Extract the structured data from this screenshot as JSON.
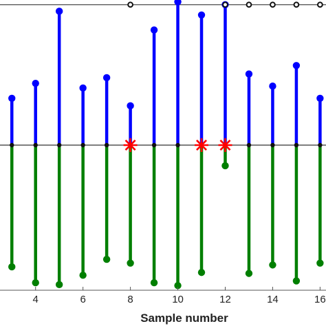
{
  "chart_data": {
    "type": "stem",
    "xlabel": "Sample number",
    "xlim": [
      2.5,
      16.25
    ],
    "ylim": [
      -1.55,
      1.55
    ],
    "x_ticks": [
      4,
      6,
      8,
      10,
      12,
      14,
      16
    ],
    "x_tick_labels": [
      "4",
      "6",
      "8",
      "10",
      "12",
      "14",
      "16"
    ],
    "grid": false,
    "baselines": [
      0,
      1.5
    ],
    "series": [
      {
        "color": "#0000ff",
        "x": [
          3,
          4,
          5,
          6,
          7,
          8,
          9,
          10,
          11,
          12,
          13,
          14,
          15,
          16
        ],
        "values": [
          0.5,
          0.66,
          1.43,
          0.61,
          0.72,
          0.42,
          1.23,
          1.53,
          1.39,
          1.5,
          0.76,
          0.63,
          0.85,
          0.5
        ]
      },
      {
        "color": "#007f00",
        "x": [
          3,
          4,
          5,
          6,
          7,
          8,
          9,
          10,
          11,
          12,
          13,
          14,
          15,
          16
        ],
        "values": [
          -1.3,
          -1.47,
          -1.49,
          -1.39,
          -1.22,
          -1.26,
          -1.47,
          -1.5,
          -1.36,
          -0.22,
          -1.37,
          -1.28,
          -1.45,
          -1.26
        ]
      }
    ],
    "marked_points": {
      "color": "#ff0000",
      "symbol": "asterisk",
      "x": [
        8,
        11,
        12
      ],
      "y": [
        0,
        0,
        0
      ]
    },
    "baseline_markers": {
      "x": [
        3,
        4,
        5,
        6,
        7,
        8,
        9,
        10,
        11,
        12,
        13,
        14,
        15,
        16
      ],
      "y": 0
    },
    "top_markers": {
      "x": [
        8,
        12,
        13,
        14,
        15,
        16
      ],
      "y": 1.5
    }
  }
}
